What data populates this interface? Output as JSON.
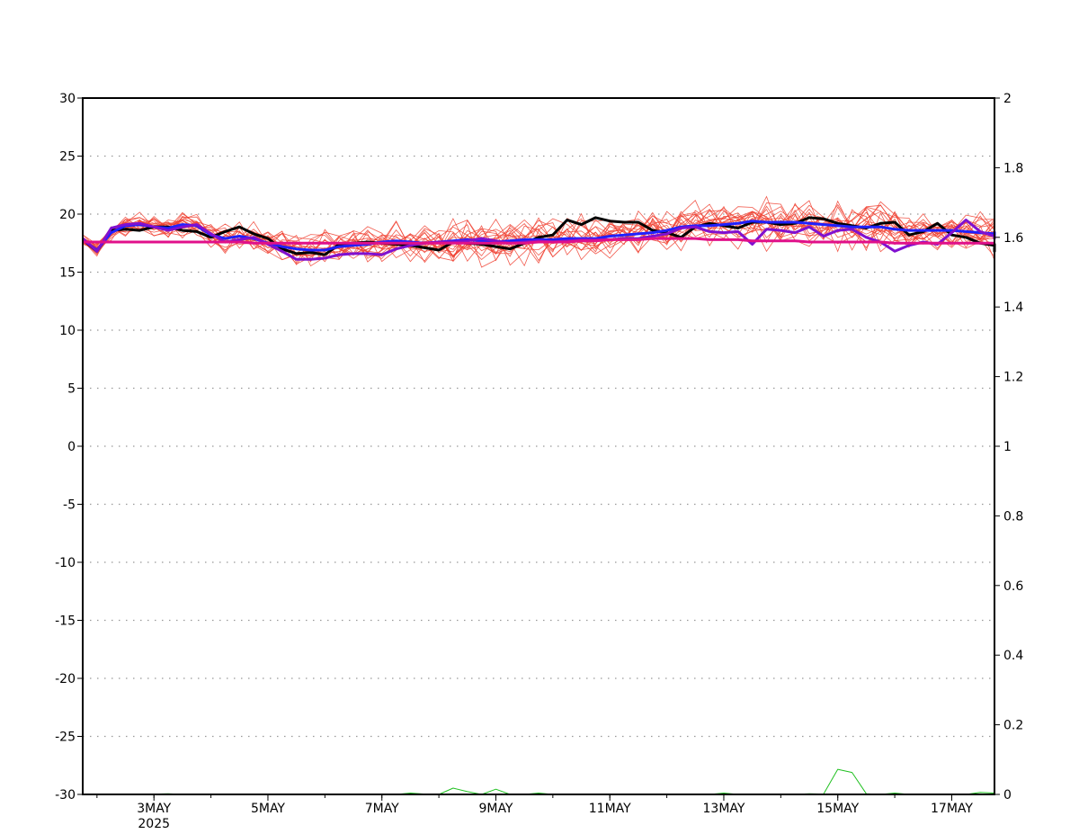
{
  "chart_data": {
    "type": "line",
    "title": "",
    "xlabel": "",
    "ylabel": "",
    "grid": "horizontal dotted",
    "x_range_days": [
      "2025-05-01T18:00",
      "2025-05-17T18:00"
    ],
    "x_ticks": [
      {
        "date": "2025-05-03",
        "label": "3MAY"
      },
      {
        "date": "2025-05-05",
        "label": "5MAY"
      },
      {
        "date": "2025-05-07",
        "label": "7MAY"
      },
      {
        "date": "2025-05-09",
        "label": "9MAY"
      },
      {
        "date": "2025-05-11",
        "label": "11MAY"
      },
      {
        "date": "2025-05-13",
        "label": "13MAY"
      },
      {
        "date": "2025-05-15",
        "label": "15MAY"
      },
      {
        "date": "2025-05-17",
        "label": "17MAY"
      }
    ],
    "x_year_label": "2025",
    "y_left": {
      "ylim": [
        -30,
        30
      ],
      "ticks": [
        "30",
        "25",
        "20",
        "15",
        "10",
        "5",
        "0",
        "-5",
        "-10",
        "-15",
        "-20",
        "-25",
        "-30"
      ]
    },
    "y_right": {
      "ylim": [
        0,
        2
      ],
      "ticks": [
        "2",
        "1.8",
        "1.6",
        "1.4",
        "1.2",
        "1",
        "0.8",
        "0.6",
        "0.4",
        "0.2",
        "0"
      ]
    },
    "series_style": {
      "ensemble_color": "#f04030",
      "observed_color": "#000000",
      "ensemble_mean_color": "#2020ff",
      "control_color": "#8010d0",
      "climatology_color": "#e0108a",
      "precip_color": "#20c020"
    },
    "series": [
      {
        "axis": "left",
        "color": "#000000",
        "width": 3,
        "start": "2025-05-01T18:00",
        "step_hours": 6,
        "values": [
          17.8,
          16.8,
          18.6,
          18.7,
          18.6,
          18.9,
          18.9,
          18.6,
          18.5,
          18.0,
          18.5,
          18.9,
          18.3,
          17.9,
          17.0,
          16.6,
          16.7,
          16.5,
          17.4,
          17.5,
          17.6,
          17.5,
          17.4,
          17.3,
          17.1,
          16.9,
          17.6,
          17.5,
          17.4,
          17.2,
          17.0,
          17.5,
          18.0,
          18.2,
          19.5,
          19.1,
          19.7,
          19.4,
          19.3,
          19.3,
          18.6,
          18.4,
          18.0,
          18.9,
          19.2,
          19.0,
          18.8,
          19.3,
          19.3,
          19.1,
          19.2,
          19.7,
          19.6,
          19.2,
          19.0,
          18.8,
          19.2,
          19.3,
          18.2,
          18.5,
          19.2,
          18.2,
          18.0,
          17.5,
          17.3,
          17.3,
          17.4,
          16.8,
          17.4
        ]
      },
      {
        "axis": "left",
        "color": "#2020ff",
        "width": 3,
        "start": "2025-05-01T18:00",
        "step_hours": 6,
        "values": [
          17.8,
          16.9,
          18.4,
          19.0,
          19.1,
          18.9,
          18.8,
          19.1,
          19.0,
          18.2,
          17.9,
          18.1,
          17.9,
          17.5,
          17.2,
          17.0,
          16.9,
          16.9,
          17.2,
          17.3,
          17.4,
          17.6,
          17.7,
          17.6,
          17.5,
          17.6,
          17.7,
          17.8,
          17.7,
          17.6,
          17.7,
          17.8,
          17.8,
          17.8,
          17.9,
          17.9,
          17.9,
          18.1,
          18.2,
          18.3,
          18.4,
          18.6,
          18.9,
          19.0,
          19.0,
          19.1,
          19.2,
          19.4,
          19.3,
          19.3,
          19.3,
          19.2,
          19.1,
          19.0,
          18.9,
          18.9,
          18.9,
          18.7,
          18.6,
          18.6,
          18.6,
          18.6,
          18.5,
          18.4,
          18.3,
          18.2,
          18.2,
          18.1,
          18.1,
          18.2,
          18.5
        ]
      },
      {
        "axis": "left",
        "color": "#8010d0",
        "width": 3,
        "start": "2025-05-01T18:00",
        "step_hours": 6,
        "values": [
          17.9,
          16.8,
          18.8,
          19.1,
          19.2,
          18.9,
          18.6,
          18.9,
          19.1,
          18.3,
          17.6,
          17.8,
          18.0,
          17.4,
          16.8,
          16.1,
          16.1,
          16.2,
          16.5,
          16.6,
          16.6,
          16.5,
          17.0,
          17.3,
          17.5,
          17.6,
          17.6,
          17.7,
          17.9,
          17.7,
          17.5,
          17.6,
          17.7,
          17.6,
          17.7,
          17.8,
          17.8,
          17.8,
          17.9,
          17.9,
          18.1,
          18.3,
          18.8,
          18.9,
          18.5,
          18.4,
          18.5,
          17.4,
          18.7,
          18.6,
          18.4,
          18.9,
          18.1,
          18.6,
          18.7,
          18.0,
          17.6,
          16.8,
          17.3,
          17.6,
          17.4,
          18.4,
          19.5,
          18.5,
          18.1,
          18.0,
          17.9,
          17.9,
          18.1
        ]
      },
      {
        "axis": "left",
        "color": "#e0108a",
        "width": 3,
        "start": "2025-05-01T18:00",
        "step_hours": 6,
        "values": [
          17.6,
          17.6,
          17.6,
          17.6,
          17.6,
          17.6,
          17.6,
          17.6,
          17.6,
          17.6,
          17.6,
          17.6,
          17.5,
          17.5,
          17.5,
          17.5,
          17.5,
          17.5,
          17.5,
          17.5,
          17.5,
          17.5,
          17.5,
          17.5,
          17.5,
          17.5,
          17.5,
          17.5,
          17.5,
          17.5,
          17.5,
          17.5,
          17.6,
          17.6,
          17.6,
          17.7,
          17.7,
          17.8,
          17.8,
          17.8,
          17.9,
          17.9,
          17.9,
          17.9,
          17.8,
          17.8,
          17.8,
          17.7,
          17.7,
          17.7,
          17.7,
          17.6,
          17.6,
          17.6,
          17.6,
          17.6,
          17.6,
          17.5,
          17.5,
          17.5,
          17.5,
          17.5,
          17.5,
          17.5,
          17.5,
          17.5,
          17.5,
          17.5,
          17.5
        ]
      },
      {
        "axis": "right",
        "color": "#20c020",
        "width": 1,
        "start": "2025-05-01T18:00",
        "step_hours": 6,
        "values": [
          0,
          0,
          0,
          0.001,
          0,
          0.001,
          0.002,
          0,
          0,
          0,
          0,
          0,
          0,
          0,
          0,
          0,
          0,
          0,
          0,
          0,
          0,
          0,
          0,
          0.004,
          0.001,
          0,
          0.018,
          0.008,
          0,
          0.015,
          0,
          0,
          0.004,
          0,
          0,
          0.001,
          0,
          0,
          0,
          0,
          0,
          0,
          0,
          0,
          0,
          0.004,
          0,
          0,
          0,
          0,
          0,
          0.002,
          0.001,
          0.072,
          0.063,
          0.002,
          0,
          0.004,
          0,
          0,
          0,
          0.001,
          0,
          0.006,
          0.004,
          0,
          0,
          0,
          0,
          0,
          0,
          0,
          0,
          0.002,
          0.003,
          0
        ]
      }
    ],
    "ensemble_members": {
      "axis": "left",
      "color": "#f04030",
      "width": 0.8,
      "count": 20,
      "mean_series_index": 1,
      "spread_deg": 1.1
    }
  }
}
